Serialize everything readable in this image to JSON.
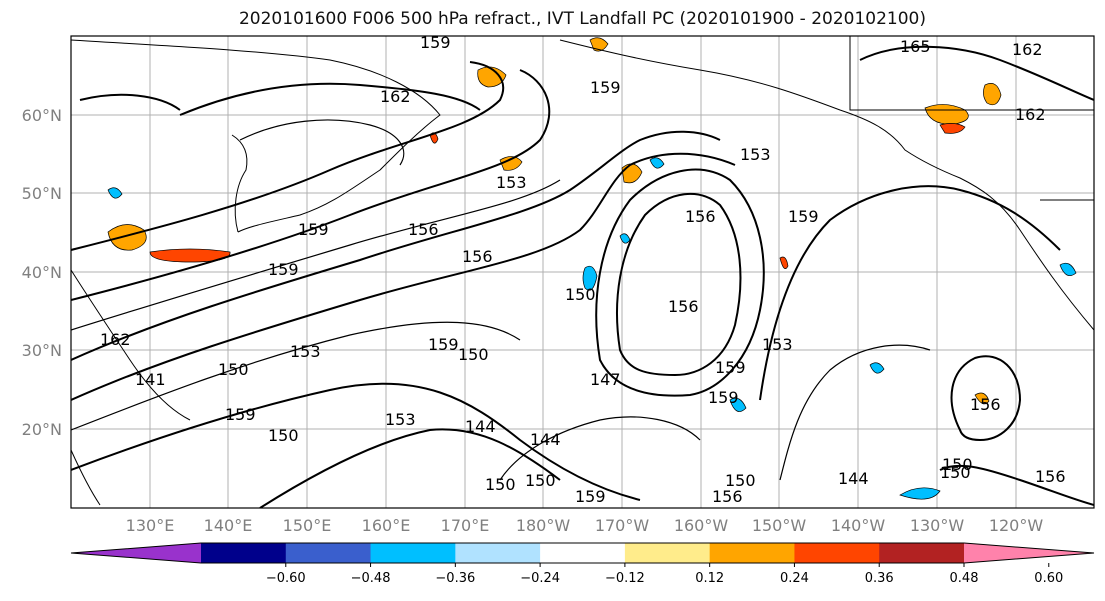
{
  "title": "2020101600 F006 500 hPa refract., IVT Landfall PC (2020101900 - 2020102100)",
  "map": {
    "lon_labels": [
      "130°E",
      "140°E",
      "150°E",
      "160°E",
      "170°E",
      "180°W",
      "170°W",
      "160°W",
      "150°W",
      "140°W",
      "130°W",
      "120°W"
    ],
    "lat_labels": [
      "60°N",
      "50°N",
      "40°N",
      "30°N",
      "20°N"
    ],
    "contour_labels": [
      "159",
      "159",
      "162",
      "153",
      "165",
      "162",
      "162",
      "159",
      "156",
      "159",
      "153",
      "156",
      "156",
      "150",
      "153",
      "156",
      "159",
      "159",
      "150",
      "147",
      "153",
      "150",
      "159",
      "144",
      "144",
      "159",
      "150",
      "150",
      "159",
      "156",
      "150",
      "159",
      "150",
      "144",
      "153",
      "150",
      "156",
      "156",
      "150",
      "141",
      "162"
    ]
  },
  "colorbar": {
    "ticks": [
      "−0.60",
      "−0.48",
      "−0.36",
      "−0.24",
      "−0.12",
      "0.12",
      "0.24",
      "0.36",
      "0.48",
      "0.60"
    ],
    "colors": [
      "#9932cc",
      "#00008b",
      "#3a5fcd",
      "#00bfff",
      "#b0e2ff",
      "#ffffff",
      "#ffec8b",
      "#ffa500",
      "#ff4500",
      "#b22222",
      "#ff82ab"
    ]
  }
}
